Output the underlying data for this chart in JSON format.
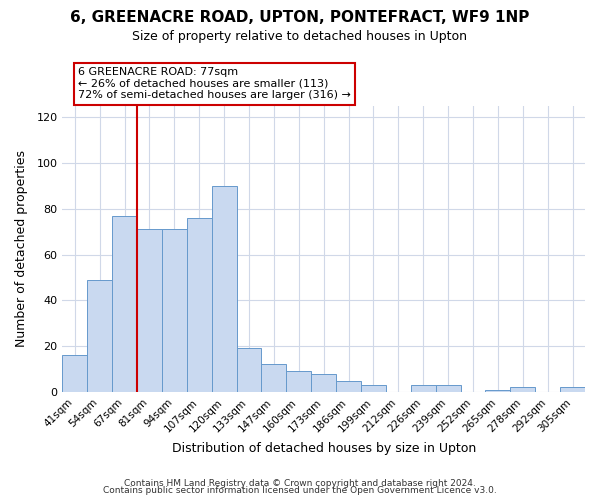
{
  "title1": "6, GREENACRE ROAD, UPTON, PONTEFRACT, WF9 1NP",
  "title2": "Size of property relative to detached houses in Upton",
  "xlabel": "Distribution of detached houses by size in Upton",
  "ylabel": "Number of detached properties",
  "categories": [
    "41sqm",
    "54sqm",
    "67sqm",
    "81sqm",
    "94sqm",
    "107sqm",
    "120sqm",
    "133sqm",
    "147sqm",
    "160sqm",
    "173sqm",
    "186sqm",
    "199sqm",
    "212sqm",
    "226sqm",
    "239sqm",
    "252sqm",
    "265sqm",
    "278sqm",
    "292sqm",
    "305sqm"
  ],
  "values": [
    16,
    49,
    77,
    71,
    71,
    76,
    90,
    19,
    12,
    9,
    8,
    5,
    3,
    0,
    3,
    3,
    0,
    1,
    2,
    0,
    2
  ],
  "bar_color": "#c9d9f0",
  "bar_edge_color": "#6699cc",
  "ylim": [
    0,
    125
  ],
  "yticks": [
    0,
    20,
    40,
    60,
    80,
    100,
    120
  ],
  "vline_color": "#cc0000",
  "vline_pos": 2.5,
  "annotation_line1": "6 GREENACRE ROAD: 77sqm",
  "annotation_line2": "← 26% of detached houses are smaller (113)",
  "annotation_line3": "72% of semi-detached houses are larger (316) →",
  "annotation_box_edgecolor": "#cc0000",
  "annotation_box_facecolor": "#ffffff",
  "footnote1": "Contains HM Land Registry data © Crown copyright and database right 2024.",
  "footnote2": "Contains public sector information licensed under the Open Government Licence v3.0.",
  "bg_color": "#ffffff",
  "grid_color": "#d0d8e8",
  "title1_fontsize": 11,
  "title2_fontsize": 9
}
